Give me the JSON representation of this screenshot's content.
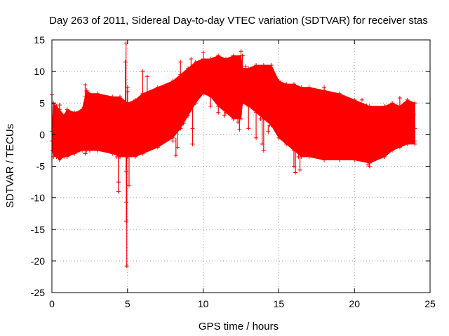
{
  "chart_data": {
    "type": "scatter",
    "title": "Day 263 of 2011, Sidereal Day-to-day VTEC variation (SDTVAR) for receiver stas",
    "xlabel": "GPS time / hours",
    "ylabel": "SDTVAR / TECUs",
    "xlim": [
      0,
      25
    ],
    "ylim": [
      -25,
      15
    ],
    "grid": true,
    "x_ticks": [
      "0",
      "5",
      "10",
      "15",
      "20",
      "25"
    ],
    "y_ticks": [
      "15",
      "10",
      "5",
      "0",
      "-5",
      "-10",
      "-15",
      "-20",
      "-25"
    ],
    "series": [
      {
        "name": "SDTVAR",
        "color": "#ff0000",
        "marker": "plus",
        "envelope": {
          "x": [
            0.0,
            0.1,
            0.3,
            0.5,
            0.8,
            1.0,
            1.5,
            2.0,
            2.2,
            2.3,
            2.5,
            3.0,
            4.0,
            4.5,
            5.0,
            5.5,
            6.0,
            7.0,
            8.0,
            8.5,
            9.0,
            9.5,
            10.0,
            10.5,
            11.0,
            11.5,
            12.0,
            12.5,
            12.6,
            13.0,
            13.5,
            14.0,
            14.5,
            15.0,
            15.5,
            16.0,
            16.5,
            17.0,
            18.0,
            19.0,
            20.0,
            21.0,
            22.0,
            22.5,
            23.0,
            23.5,
            24.0
          ],
          "upper": [
            0.5,
            5.0,
            4.5,
            4.0,
            3.0,
            4.0,
            3.5,
            4.0,
            6.0,
            7.0,
            6.5,
            6.5,
            6.0,
            6.0,
            5.0,
            5.5,
            6.5,
            7.5,
            8.5,
            9.5,
            10.5,
            11.5,
            12.0,
            12.0,
            12.5,
            12.0,
            12.5,
            12.5,
            10.5,
            10.5,
            11.0,
            11.0,
            11.0,
            8.5,
            8.0,
            8.0,
            7.5,
            7.5,
            7.0,
            6.5,
            5.5,
            4.5,
            4.5,
            5.0,
            4.5,
            5.5,
            5.0
          ],
          "lower": [
            -1.0,
            -3.5,
            -3.5,
            -4.0,
            -3.5,
            -3.5,
            -3.0,
            -2.5,
            -2.5,
            -2.5,
            -2.5,
            -2.5,
            -3.0,
            -3.5,
            -3.5,
            -3.5,
            -3.0,
            -2.0,
            -0.5,
            1.0,
            3.0,
            5.0,
            6.5,
            6.0,
            4.5,
            3.5,
            2.5,
            2.5,
            5.0,
            4.5,
            3.5,
            2.5,
            1.5,
            -0.5,
            -1.5,
            -2.5,
            -3.5,
            -3.5,
            -4.0,
            -4.0,
            -4.0,
            -4.5,
            -3.5,
            -2.5,
            -2.0,
            -1.5,
            -1.5
          ]
        },
        "outliers": [
          {
            "x": 0.0,
            "y": 6.3
          },
          {
            "x": 0.05,
            "y": -2.5
          },
          {
            "x": 0.5,
            "y": 4.7
          },
          {
            "x": 2.2,
            "y": 7.9
          },
          {
            "x": 2.3,
            "y": 6.8
          },
          {
            "x": 2.2,
            "y": -3.0
          },
          {
            "x": 4.3,
            "y": -3.5
          },
          {
            "x": 4.4,
            "y": -7.5
          },
          {
            "x": 4.4,
            "y": -9.0
          },
          {
            "x": 4.5,
            "y": 4.5
          },
          {
            "x": 4.9,
            "y": -5.8
          },
          {
            "x": 4.9,
            "y": 14.5
          },
          {
            "x": 4.85,
            "y": 11.5
          },
          {
            "x": 4.92,
            "y": -10.7
          },
          {
            "x": 4.92,
            "y": -13.7
          },
          {
            "x": 4.95,
            "y": -20.8
          },
          {
            "x": 5.0,
            "y": 6.8
          },
          {
            "x": 5.0,
            "y": 7.5
          },
          {
            "x": 5.1,
            "y": -8.0
          },
          {
            "x": 6.0,
            "y": 10.0
          },
          {
            "x": 6.3,
            "y": 9.2
          },
          {
            "x": 8.0,
            "y": -1.0
          },
          {
            "x": 8.2,
            "y": -3.3
          },
          {
            "x": 8.3,
            "y": -2.0
          },
          {
            "x": 8.5,
            "y": 1.0
          },
          {
            "x": 8.7,
            "y": 1.8
          },
          {
            "x": 8.5,
            "y": 11.5
          },
          {
            "x": 9.2,
            "y": 12.0
          },
          {
            "x": 9.3,
            "y": 1.0
          },
          {
            "x": 9.3,
            "y": -1.5
          },
          {
            "x": 10.0,
            "y": 13.0
          },
          {
            "x": 10.5,
            "y": 4.5
          },
          {
            "x": 11.0,
            "y": 3.5
          },
          {
            "x": 11.4,
            "y": 3.0
          },
          {
            "x": 12.3,
            "y": 2.0
          },
          {
            "x": 12.4,
            "y": 0.8
          },
          {
            "x": 12.5,
            "y": 13.2
          },
          {
            "x": 12.6,
            "y": 12.5
          },
          {
            "x": 12.8,
            "y": 10.8
          },
          {
            "x": 13.0,
            "y": 1.0
          },
          {
            "x": 13.5,
            "y": -0.5
          },
          {
            "x": 13.8,
            "y": 2.5
          },
          {
            "x": 13.9,
            "y": -1.5
          },
          {
            "x": 14.0,
            "y": -2.5
          },
          {
            "x": 14.3,
            "y": 0.5
          },
          {
            "x": 14.4,
            "y": 1.5
          },
          {
            "x": 14.5,
            "y": 10.5
          },
          {
            "x": 15.5,
            "y": 1.8
          },
          {
            "x": 16.0,
            "y": -5.0
          },
          {
            "x": 16.1,
            "y": -6.0
          },
          {
            "x": 16.3,
            "y": -3.5
          },
          {
            "x": 16.4,
            "y": -5.6
          },
          {
            "x": 18.0,
            "y": 7.5
          },
          {
            "x": 20.5,
            "y": 5.5
          },
          {
            "x": 20.8,
            "y": 4.5
          },
          {
            "x": 20.9,
            "y": -4.8
          },
          {
            "x": 21.0,
            "y": -5.0
          },
          {
            "x": 22.5,
            "y": 4.8
          },
          {
            "x": 23.0,
            "y": 5.8
          },
          {
            "x": 23.5,
            "y": 4.5
          },
          {
            "x": 23.9,
            "y": 3.2
          },
          {
            "x": 24.0,
            "y": 1.0
          },
          {
            "x": 24.0,
            "y": -1.0
          }
        ]
      }
    ]
  }
}
